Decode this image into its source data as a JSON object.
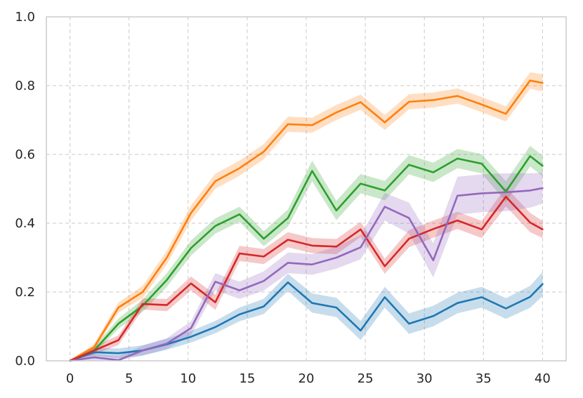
{
  "chart_data": {
    "type": "line",
    "title": "",
    "xlabel": "",
    "ylabel": "",
    "xlim": [
      -2,
      42
    ],
    "ylim": [
      0,
      1.0
    ],
    "xticks": [
      0,
      5,
      10,
      15,
      20,
      25,
      30,
      35,
      40
    ],
    "xtick_labels": [
      "0",
      "5",
      "10",
      "15",
      "20",
      "25",
      "30",
      "35",
      "40"
    ],
    "yticks": [
      0.0,
      0.2,
      0.4,
      0.6,
      0.8,
      1.0
    ],
    "ytick_labels": [
      "0.0",
      "0.2",
      "0.4",
      "0.6",
      "0.8",
      "1.0"
    ],
    "grid": true,
    "legend": "none",
    "shaded_confidence_bands": true,
    "x": [
      0,
      2.05,
      4.1,
      6.15,
      8.2,
      10.25,
      12.3,
      14.35,
      16.4,
      18.45,
      20.5,
      22.55,
      24.6,
      26.65,
      28.7,
      30.75,
      32.8,
      34.85,
      36.9,
      38.95,
      40
    ],
    "series": [
      {
        "color": "#1f77b4",
        "values": [
          0.0,
          0.025,
          0.022,
          0.03,
          0.048,
          0.07,
          0.098,
          0.135,
          0.158,
          0.228,
          0.168,
          0.155,
          0.088,
          0.185,
          0.108,
          0.13,
          0.168,
          0.185,
          0.152,
          0.186,
          0.223
        ],
        "band": [
          0.0,
          0.012,
          0.014,
          0.015,
          0.016,
          0.017,
          0.018,
          0.02,
          0.022,
          0.025,
          0.028,
          0.028,
          0.028,
          0.03,
          0.03,
          0.03,
          0.03,
          0.03,
          0.03,
          0.032,
          0.035
        ]
      },
      {
        "color": "#ff7f0e",
        "values": [
          0.0,
          0.04,
          0.155,
          0.2,
          0.3,
          0.43,
          0.522,
          0.56,
          0.608,
          0.688,
          0.685,
          0.722,
          0.752,
          0.693,
          0.753,
          0.758,
          0.77,
          0.745,
          0.718,
          0.815,
          0.808
        ],
        "band": [
          0.0,
          0.01,
          0.015,
          0.018,
          0.02,
          0.022,
          0.022,
          0.022,
          0.022,
          0.022,
          0.022,
          0.022,
          0.022,
          0.022,
          0.022,
          0.022,
          0.022,
          0.022,
          0.022,
          0.024,
          0.025
        ]
      },
      {
        "color": "#2ca02c",
        "values": [
          0.0,
          0.03,
          0.108,
          0.16,
          0.235,
          0.328,
          0.392,
          0.426,
          0.355,
          0.415,
          0.552,
          0.437,
          0.515,
          0.495,
          0.57,
          0.548,
          0.588,
          0.573,
          0.492,
          0.595,
          0.567
        ],
        "band": [
          0.0,
          0.01,
          0.015,
          0.018,
          0.02,
          0.022,
          0.022,
          0.022,
          0.022,
          0.025,
          0.03,
          0.028,
          0.028,
          0.028,
          0.028,
          0.028,
          0.028,
          0.028,
          0.03,
          0.03,
          0.03
        ]
      },
      {
        "color": "#d62728",
        "values": [
          0.0,
          0.03,
          0.06,
          0.165,
          0.162,
          0.225,
          0.17,
          0.312,
          0.303,
          0.352,
          0.335,
          0.332,
          0.382,
          0.275,
          0.355,
          0.383,
          0.408,
          0.382,
          0.477,
          0.402,
          0.382
        ],
        "band": [
          0.0,
          0.012,
          0.014,
          0.016,
          0.018,
          0.02,
          0.022,
          0.022,
          0.022,
          0.022,
          0.022,
          0.022,
          0.022,
          0.022,
          0.025,
          0.025,
          0.025,
          0.025,
          0.028,
          0.028,
          0.025
        ]
      },
      {
        "color": "#9467bd",
        "values": [
          0.0,
          0.01,
          0.002,
          0.03,
          0.05,
          0.095,
          0.23,
          0.205,
          0.232,
          0.285,
          0.28,
          0.3,
          0.33,
          0.448,
          0.415,
          0.292,
          0.48,
          0.487,
          0.49,
          0.495,
          0.502
        ],
        "band": [
          0.0,
          0.01,
          0.012,
          0.014,
          0.016,
          0.02,
          0.025,
          0.025,
          0.028,
          0.03,
          0.03,
          0.032,
          0.035,
          0.04,
          0.045,
          0.05,
          0.055,
          0.055,
          0.055,
          0.05,
          0.045
        ]
      }
    ]
  }
}
